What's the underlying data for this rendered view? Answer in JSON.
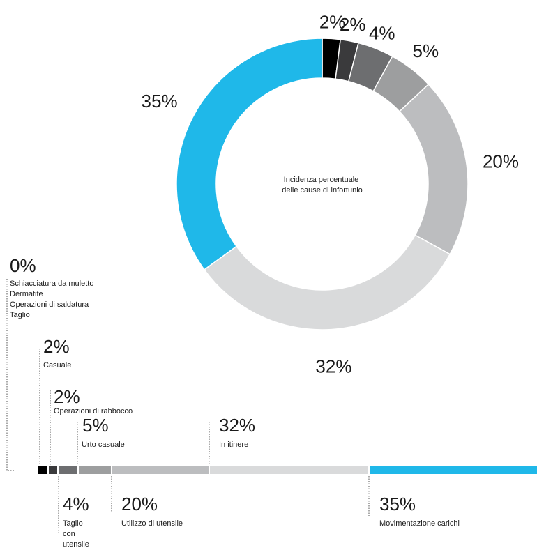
{
  "chart_data": [
    {
      "type": "pie",
      "title": "Incidenza percentuale delle cause di infortunio",
      "title_lines": [
        "Incidenza percentuale",
        "delle cause di infortunio"
      ],
      "slices": [
        {
          "label": "Casuale",
          "value": 2,
          "display": "2%",
          "color": "#000000"
        },
        {
          "label": "Operazioni di rabbocco",
          "value": 2,
          "display": "2%",
          "color": "#3a3a3c"
        },
        {
          "label": "Taglio con utensile",
          "value": 4,
          "display": "4%",
          "color": "#6d6e70"
        },
        {
          "label": "Urto casuale",
          "value": 5,
          "display": "5%",
          "color": "#9d9e9f"
        },
        {
          "label": "Utilizzo di utensile",
          "value": 20,
          "display": "20%",
          "color": "#bcbdbf"
        },
        {
          "label": "In itinere",
          "value": 32,
          "display": "32%",
          "color": "#d9dadb"
        },
        {
          "label": "Movimentazione carichi",
          "value": 35,
          "display": "35%",
          "color": "#1fb8e9"
        }
      ]
    },
    {
      "type": "bar",
      "orientation": "stacked-horizontal",
      "categories": [
        "Schiacciatura da muletto / Dermatite / Operazioni di saldatura / Taglio",
        "Casuale",
        "Operazioni di rabbocco",
        "Taglio con utensile",
        "Urto casuale",
        "Utilizzo di utensile",
        "In itinere",
        "Movimentazione carichi"
      ],
      "values": [
        0,
        2,
        2,
        4,
        5,
        20,
        32,
        35
      ]
    }
  ],
  "bar_labels": [
    {
      "pct": "0%",
      "lines": [
        "Schiacciatura da muletto",
        "Dermatite",
        "Operazioni di saldatura",
        "Taglio"
      ],
      "color": "#ffffff",
      "side": "top"
    },
    {
      "pct": "2%",
      "lines": [
        "Casuale"
      ],
      "color": "#000000",
      "side": "top"
    },
    {
      "pct": "2%",
      "lines": [
        "Operazioni di rabbocco"
      ],
      "color": "#3a3a3c",
      "side": "top"
    },
    {
      "pct": "4%",
      "lines": [
        "Taglio",
        "con",
        "utensile"
      ],
      "color": "#6d6e70",
      "side": "bottom"
    },
    {
      "pct": "5%",
      "lines": [
        "Urto casuale"
      ],
      "color": "#9d9e9f",
      "side": "top"
    },
    {
      "pct": "20%",
      "lines": [
        "Utilizzo di utensile"
      ],
      "color": "#bcbdbf",
      "side": "bottom"
    },
    {
      "pct": "32%",
      "lines": [
        "In itinere"
      ],
      "color": "#d9dadb",
      "side": "top"
    },
    {
      "pct": "35%",
      "lines": [
        "Movimentazione carichi"
      ],
      "color": "#1fb8e9",
      "side": "bottom"
    }
  ]
}
